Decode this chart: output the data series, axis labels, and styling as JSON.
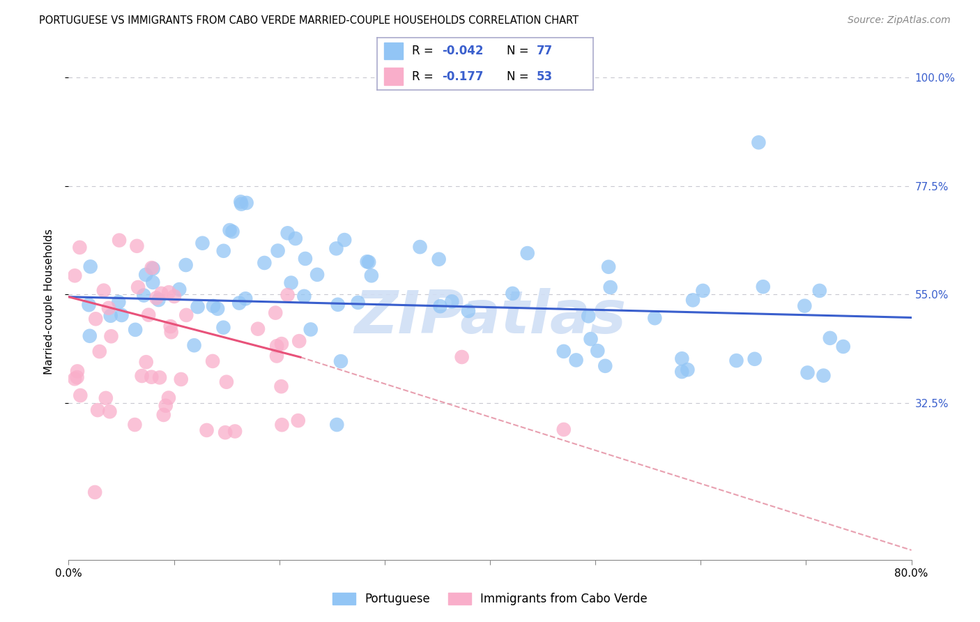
{
  "title": "PORTUGUESE VS IMMIGRANTS FROM CABO VERDE MARRIED-COUPLE HOUSEHOLDS CORRELATION CHART",
  "source": "Source: ZipAtlas.com",
  "ylabel": "Married-couple Households",
  "R1": -0.042,
  "N1": 77,
  "R2": -0.177,
  "N2": 53,
  "color_blue": "#92C5F5",
  "color_pink": "#F9AECA",
  "line_blue": "#3A5FCD",
  "line_pink": "#E8527A",
  "line_dashed_color": "#E8A0B0",
  "text_blue": "#3A5FCD",
  "legend1_label": "Portuguese",
  "legend2_label": "Immigrants from Cabo Verde",
  "watermark_color": "#D0DFF5",
  "grid_color": "#C8C8D0",
  "background": "#FFFFFF",
  "xlim": [
    0.0,
    0.8
  ],
  "ylim": [
    0.0,
    1.07
  ],
  "ytick_positions": [
    0.325,
    0.55,
    0.775,
    1.0
  ],
  "ytick_labels": [
    "32.5%",
    "55.0%",
    "77.5%",
    "100.0%"
  ],
  "blue_line_start_y": 0.545,
  "blue_line_end_y": 0.502,
  "pink_line_start_y": 0.545,
  "pink_line_solid_end_x": 0.22,
  "pink_line_solid_end_y": 0.42,
  "pink_line_dash_end_x": 0.8,
  "pink_line_dash_end_y": 0.02
}
